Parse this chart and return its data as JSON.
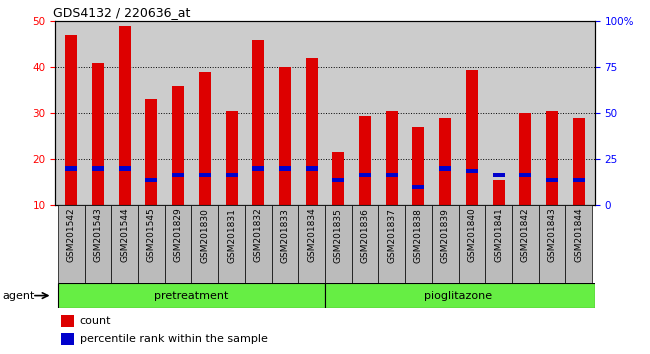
{
  "title": "GDS4132 / 220636_at",
  "categories": [
    "GSM201542",
    "GSM201543",
    "GSM201544",
    "GSM201545",
    "GSM201829",
    "GSM201830",
    "GSM201831",
    "GSM201832",
    "GSM201833",
    "GSM201834",
    "GSM201835",
    "GSM201836",
    "GSM201837",
    "GSM201838",
    "GSM201839",
    "GSM201840",
    "GSM201841",
    "GSM201842",
    "GSM201843",
    "GSM201844"
  ],
  "count_values": [
    47,
    41,
    49,
    33,
    36,
    39,
    30.5,
    46,
    40,
    42,
    21.5,
    29.5,
    30.5,
    27,
    29,
    39.5,
    15.5,
    30,
    30.5,
    29
  ],
  "percentile_values": [
    18,
    18,
    18,
    15.5,
    16.5,
    16.5,
    16.5,
    18,
    18,
    18,
    15.5,
    16.5,
    16.5,
    14,
    18,
    17.5,
    16.5,
    16.5,
    15.5,
    15.5
  ],
  "bar_color": "#dd0000",
  "percentile_color": "#0000cc",
  "ylim_left": [
    10,
    50
  ],
  "ylim_right": [
    0,
    100
  ],
  "yticks_left": [
    10,
    20,
    30,
    40,
    50
  ],
  "yticks_right": [
    0,
    25,
    50,
    75,
    100
  ],
  "ytick_labels_right": [
    "0",
    "25",
    "50",
    "75",
    "100%"
  ],
  "group1_label": "pretreatment",
  "group2_label": "pioglitazone",
  "group1_count": 10,
  "group2_count": 10,
  "legend_count_label": "count",
  "legend_percentile_label": "percentile rank within the sample",
  "agent_label": "agent",
  "plot_bg_color": "#cccccc",
  "label_bg_color": "#bbbbbb",
  "group_bg_color": "#66ee44",
  "bar_width": 0.45,
  "grid_color": "black"
}
